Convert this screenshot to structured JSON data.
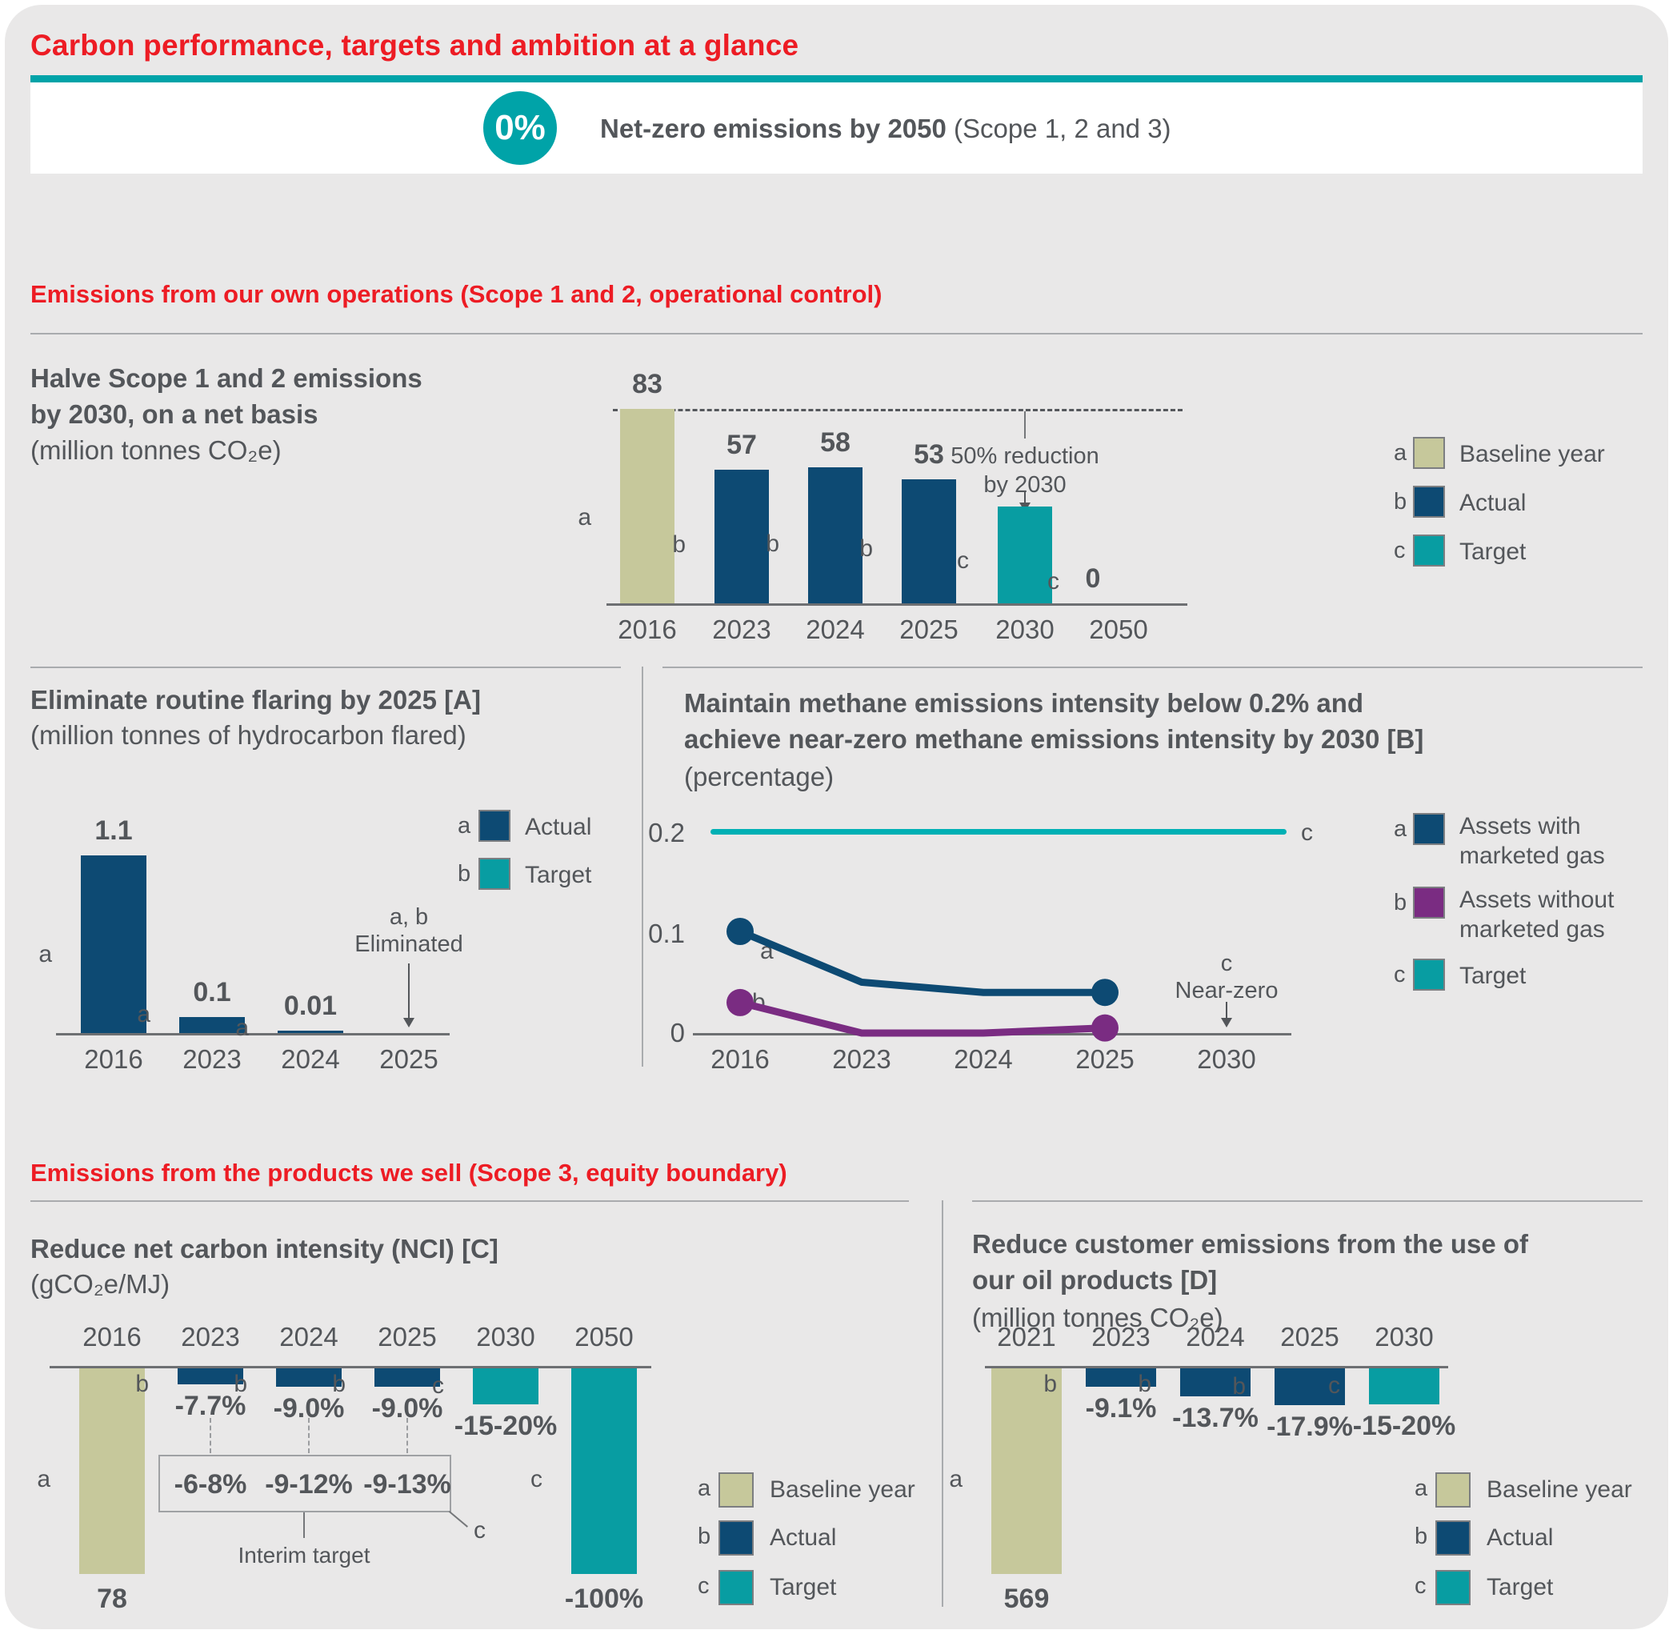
{
  "page": {
    "title": "Carbon performance, targets and ambition at a glance",
    "banner": {
      "badge": "0%",
      "headline_bold": "Net-zero emissions by 2050",
      "headline_rest": " (Scope 1, 2 and 3)"
    },
    "section1_heading": "Emissions from our own operations (Scope 1 and 2, operational control)",
    "section2_heading": "Emissions from the products we sell (Scope 3, equity boundary)"
  },
  "colors": {
    "accent_red": "#ed1c24",
    "text": "#53565a",
    "olive": "#c6c89b",
    "navy": "#0d4a73",
    "teal": "#089da2",
    "teal_bright": "#00b0b4",
    "purple": "#7a2c82",
    "page_bg": "#e9e8e8"
  },
  "chart_data": [
    {
      "id": "scope12",
      "type": "bar",
      "title": "Halve Scope 1 and 2 emissions\nby 2030, on a net basis",
      "subtitle": "(million tonnes CO₂e)",
      "ylim": [
        0,
        83
      ],
      "categories": [
        "2016",
        "2023",
        "2024",
        "2025",
        "2030",
        "2050"
      ],
      "bars": [
        {
          "year": "2016",
          "value": 83,
          "label": "83",
          "series": "a",
          "color": "olive"
        },
        {
          "year": "2023",
          "value": 57,
          "label": "57",
          "series": "b",
          "color": "navy"
        },
        {
          "year": "2024",
          "value": 58,
          "label": "58",
          "series": "b",
          "color": "navy"
        },
        {
          "year": "2025",
          "value": 53,
          "label": "53",
          "series": "b",
          "color": "navy"
        },
        {
          "year": "2030",
          "value": 41.5,
          "label": "",
          "series": "c",
          "color": "teal"
        },
        {
          "year": "2050",
          "value": 0,
          "label": "0",
          "series": "c",
          "color": null
        }
      ],
      "dashed_reference_value": 83,
      "annotation": {
        "line1": "50% reduction",
        "line2": "by 2030"
      },
      "legend": [
        {
          "key": "a",
          "label": "Baseline year",
          "color": "olive"
        },
        {
          "key": "b",
          "label": "Actual",
          "color": "navy"
        },
        {
          "key": "c",
          "label": "Target",
          "color": "teal"
        }
      ]
    },
    {
      "id": "flaring",
      "type": "bar",
      "title": "Eliminate routine flaring by 2025 [A]",
      "subtitle": "(million tonnes of hydrocarbon flared)",
      "ylim": [
        0,
        1.1
      ],
      "categories": [
        "2016",
        "2023",
        "2024",
        "2025"
      ],
      "bars": [
        {
          "year": "2016",
          "value": 1.1,
          "label": "1.1",
          "series": "a",
          "color": "navy"
        },
        {
          "year": "2023",
          "value": 0.1,
          "label": "0.1",
          "series": "a",
          "color": "navy"
        },
        {
          "year": "2024",
          "value": 0.01,
          "label": "0.01",
          "series": "a",
          "color": "navy"
        },
        {
          "year": "2025",
          "value": null,
          "label": "",
          "series": null,
          "color": null
        }
      ],
      "annotation": {
        "line1": "a, b",
        "line2": "Eliminated"
      },
      "legend": [
        {
          "key": "a",
          "label": "Actual",
          "color": "navy"
        },
        {
          "key": "b",
          "label": "Target",
          "color": "teal"
        }
      ]
    },
    {
      "id": "methane",
      "type": "line",
      "title": "Maintain methane emissions intensity below 0.2% and\nachieve near-zero methane emissions intensity by 2030 [B]",
      "subtitle": "(percentage)",
      "ylim": [
        0,
        0.2
      ],
      "yticks_labels": [
        "0.2",
        "0.1",
        "0"
      ],
      "x": [
        "2016",
        "2023",
        "2024",
        "2025",
        "2030"
      ],
      "target_line": {
        "value": 0.2,
        "label": "0.2",
        "key": "c"
      },
      "series": [
        {
          "key": "a",
          "name": "Assets with\nmarketed gas",
          "color": "navy",
          "values": [
            0.1,
            0.05,
            0.04,
            0.04
          ]
        },
        {
          "key": "b",
          "name": "Assets without\nmarketed gas",
          "color": "purple",
          "values": [
            0.03,
            0.0,
            0.0,
            0.005
          ]
        }
      ],
      "annotation": {
        "key": "c",
        "label": "Near-zero"
      },
      "legend": [
        {
          "key": "a",
          "label": "Assets with\nmarketed gas",
          "color": "navy"
        },
        {
          "key": "b",
          "label": "Assets without\nmarketed gas",
          "color": "purple"
        },
        {
          "key": "c",
          "label": "Target",
          "color": "teal"
        }
      ]
    },
    {
      "id": "nci",
      "type": "bar",
      "direction": "down",
      "title": "Reduce net carbon intensity (NCI) [C]",
      "subtitle": "(gCO₂e/MJ)",
      "baseline_absolute": 78,
      "categories": [
        "2016",
        "2023",
        "2024",
        "2025",
        "2030",
        "2050"
      ],
      "bars": [
        {
          "year": "2016",
          "value": -100,
          "label": "78",
          "series": "a",
          "color": "olive",
          "display": "below"
        },
        {
          "year": "2023",
          "value": -7.7,
          "label": "-7.7%",
          "series": "b",
          "color": "navy"
        },
        {
          "year": "2024",
          "value": -9.0,
          "label": "-9.0%",
          "series": "b",
          "color": "navy"
        },
        {
          "year": "2025",
          "value": -9.0,
          "label": "-9.0%",
          "series": "b",
          "color": "navy"
        },
        {
          "year": "2030",
          "value": -17.5,
          "label": "-15-20%",
          "series": "c",
          "color": "teal"
        },
        {
          "year": "2050",
          "value": -100,
          "label": "-100%",
          "series": "c",
          "color": "teal",
          "display": "below"
        }
      ],
      "interim": {
        "values": [
          "-6-8%",
          "-9-12%",
          "-9-13%"
        ],
        "caption": "Interim target",
        "key": "c"
      },
      "legend": [
        {
          "key": "a",
          "label": "Baseline year",
          "color": "olive"
        },
        {
          "key": "b",
          "label": "Actual",
          "color": "navy"
        },
        {
          "key": "c",
          "label": "Target",
          "color": "teal"
        }
      ]
    },
    {
      "id": "oil-products",
      "type": "bar",
      "direction": "down",
      "title": "Reduce customer emissions from the use of\nour oil products [D]",
      "subtitle": "(million tonnes CO₂e)",
      "baseline_absolute": 569,
      "categories": [
        "2021",
        "2023",
        "2024",
        "2025",
        "2030"
      ],
      "bars": [
        {
          "year": "2021",
          "value": -100,
          "label": "569",
          "series": "a",
          "color": "olive",
          "display": "below"
        },
        {
          "year": "2023",
          "value": -9.1,
          "label": "-9.1%",
          "series": "b",
          "color": "navy"
        },
        {
          "year": "2024",
          "value": -13.7,
          "label": "-13.7%",
          "series": "b",
          "color": "navy"
        },
        {
          "year": "2025",
          "value": -17.9,
          "label": "-17.9%",
          "series": "b",
          "color": "navy"
        },
        {
          "year": "2030",
          "value": -17.5,
          "label": "-15-20%",
          "series": "c",
          "color": "teal"
        }
      ],
      "legend": [
        {
          "key": "a",
          "label": "Baseline year",
          "color": "olive"
        },
        {
          "key": "b",
          "label": "Actual",
          "color": "navy"
        },
        {
          "key": "c",
          "label": "Target",
          "color": "teal"
        }
      ]
    }
  ]
}
